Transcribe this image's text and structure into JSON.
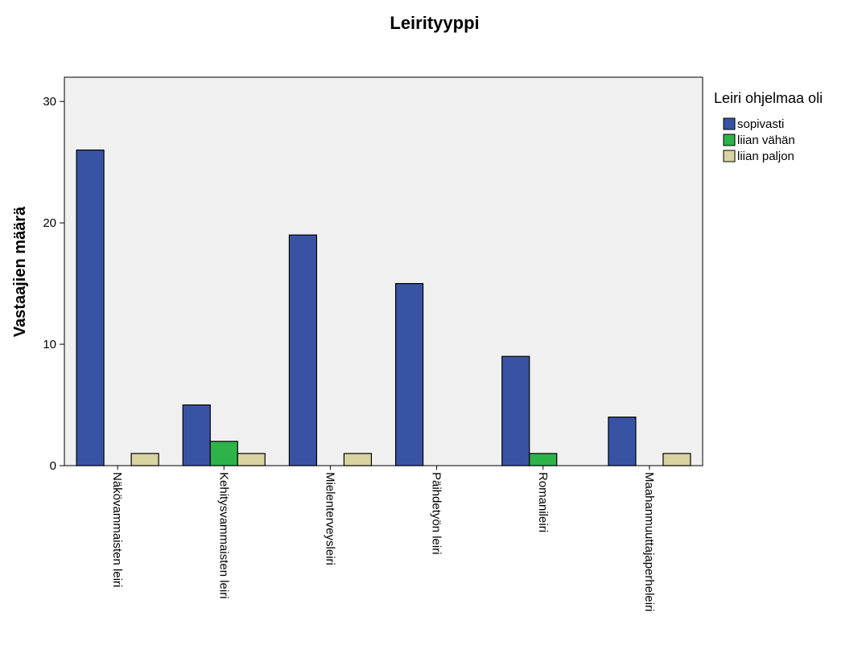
{
  "chart_data": {
    "type": "bar",
    "title": "Leirityyppi",
    "xlabel": "",
    "ylabel": "Vastaajien määrä",
    "ylim": [
      0,
      32
    ],
    "yticks": [
      0,
      10,
      20,
      30
    ],
    "categories": [
      "Näkövammaisten leiri",
      "Kehitysvammaisten leiri",
      "Mielenterveysleiri",
      "Päihdetyön leiri",
      "Romanileiri",
      "Maahanmuuttajaperheleiri"
    ],
    "series": [
      {
        "name": "sopivasti",
        "color": "#3953a4",
        "values": [
          26,
          5,
          19,
          15,
          9,
          4
        ]
      },
      {
        "name": "liian vähän",
        "color": "#2db34a",
        "values": [
          0,
          2,
          0,
          0,
          1,
          0
        ]
      },
      {
        "name": "liian paljon",
        "color": "#d9d3a0",
        "values": [
          1,
          1,
          1,
          0,
          0,
          1
        ]
      }
    ],
    "legend": {
      "title": "Leiri ohjelmaa oli",
      "position": "right"
    },
    "plot_background": "#f0f0f0",
    "grid": false
  }
}
